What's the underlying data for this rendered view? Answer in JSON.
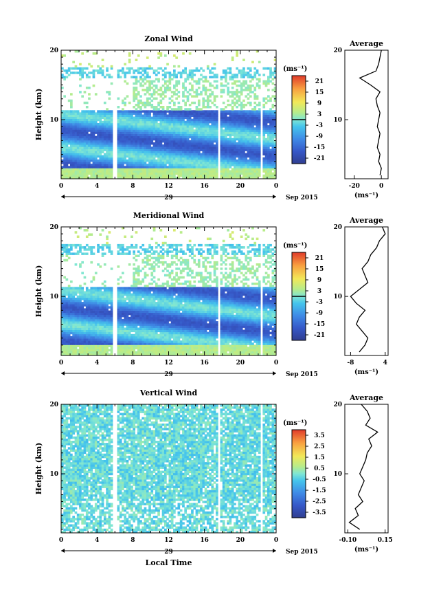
{
  "figure": {
    "x_axis_label": "Local Time",
    "date_label": "29",
    "month_label": "Sep 2015",
    "y_axis_label": "Height (km)",
    "unit_label": "(ms⁻¹)",
    "average_title": "Average"
  },
  "chart_data": [
    {
      "type": "heatmap",
      "title": "Zonal Wind",
      "xlabel": "",
      "ylabel": "Height (km)",
      "xlim": [
        0,
        24
      ],
      "ylim": [
        1.5,
        20
      ],
      "x_ticks": [
        "0",
        "4",
        "8",
        "12",
        "16",
        "20",
        "0"
      ],
      "y_ticks": [
        "10",
        "20"
      ],
      "colorbar": {
        "unit": "(ms⁻¹)",
        "range": [
          -24,
          24
        ],
        "tick_labels": [
          "21",
          "15",
          "9",
          "3",
          "-3",
          "-9",
          "-15",
          "-21"
        ],
        "contour_level": 0
      },
      "data_gaps_hours": [
        [
          5.8,
          6.2
        ],
        [
          17.4,
          17.8
        ],
        [
          22.3,
          22.6
        ]
      ],
      "profile": {
        "title": "Average",
        "xlabel": "(ms⁻¹)",
        "x_ticks": [
          "-20",
          "0"
        ],
        "y_ticks": [
          "10",
          "20"
        ],
        "xlim": [
          -27,
          5
        ],
        "heights": [
          2,
          3,
          4,
          5,
          6,
          7,
          8,
          9,
          10,
          11,
          12,
          13,
          14,
          15,
          16,
          17,
          18,
          19,
          20
        ],
        "values": [
          -1,
          0,
          -2,
          -1,
          -3,
          -2,
          -1,
          -3,
          -2,
          -1,
          -3,
          -4,
          -1,
          -8,
          -16,
          -4,
          -2,
          -1,
          0
        ]
      }
    },
    {
      "type": "heatmap",
      "title": "Meridional Wind",
      "xlabel": "",
      "ylabel": "Height (km)",
      "xlim": [
        0,
        24
      ],
      "ylim": [
        1.5,
        20
      ],
      "x_ticks": [
        "0",
        "4",
        "8",
        "12",
        "16",
        "20",
        "0"
      ],
      "y_ticks": [
        "10",
        "20"
      ],
      "colorbar": {
        "unit": "(ms⁻¹)",
        "range": [
          -24,
          24
        ],
        "tick_labels": [
          "21",
          "15",
          "9",
          "3",
          "-3",
          "-9",
          "-15",
          "-21"
        ],
        "contour_level": 0
      },
      "data_gaps_hours": [
        [
          5.8,
          6.2
        ],
        [
          17.4,
          17.8
        ],
        [
          22.3,
          22.6
        ]
      ],
      "profile": {
        "title": "Average",
        "xlabel": "(ms⁻¹)",
        "x_ticks": [
          "-8",
          "4"
        ],
        "y_ticks": [
          "10",
          "20"
        ],
        "xlim": [
          -10,
          5
        ],
        "heights": [
          2,
          3,
          4,
          5,
          6,
          7,
          8,
          9,
          10,
          11,
          12,
          13,
          14,
          15,
          16,
          17,
          18,
          19,
          20
        ],
        "values": [
          -5,
          -3,
          -2,
          -4,
          -6,
          -5,
          -3,
          -6,
          -8,
          -5,
          -2,
          -3,
          -4,
          -2,
          -1,
          1,
          2,
          4,
          3
        ]
      }
    },
    {
      "type": "heatmap",
      "title": "Vertical Wind",
      "xlabel": "Local Time",
      "ylabel": "Height (km)",
      "xlim": [
        0,
        24
      ],
      "ylim": [
        1.5,
        20
      ],
      "x_ticks": [
        "0",
        "4",
        "8",
        "12",
        "16",
        "20",
        "0"
      ],
      "y_ticks": [
        "10",
        "20"
      ],
      "colorbar": {
        "unit": "(ms⁻¹)",
        "range": [
          -4,
          4
        ],
        "tick_labels": [
          "3.5",
          "2.5",
          "1.5",
          "0.5",
          "-0.5",
          "-1.5",
          "-2.5",
          "-3.5"
        ]
      },
      "data_gaps_hours": [
        [
          5.8,
          6.2
        ],
        [
          17.4,
          17.8
        ],
        [
          22.3,
          22.6
        ]
      ],
      "profile": {
        "title": "Average",
        "xlabel": "(ms⁻¹)",
        "x_ticks": [
          "-0.10",
          "0.15"
        ],
        "y_ticks": [
          "10",
          "20"
        ],
        "xlim": [
          -0.12,
          0.17
        ],
        "heights": [
          2,
          3,
          4,
          5,
          6,
          7,
          8,
          9,
          10,
          11,
          12,
          13,
          14,
          15,
          16,
          17,
          18,
          19,
          20
        ],
        "values": [
          -0.02,
          -0.09,
          -0.03,
          -0.05,
          0.0,
          -0.03,
          -0.01,
          0.01,
          -0.02,
          0.0,
          0.02,
          0.03,
          0.06,
          0.04,
          0.1,
          0.02,
          0.05,
          0.03,
          -0.01
        ]
      }
    }
  ]
}
